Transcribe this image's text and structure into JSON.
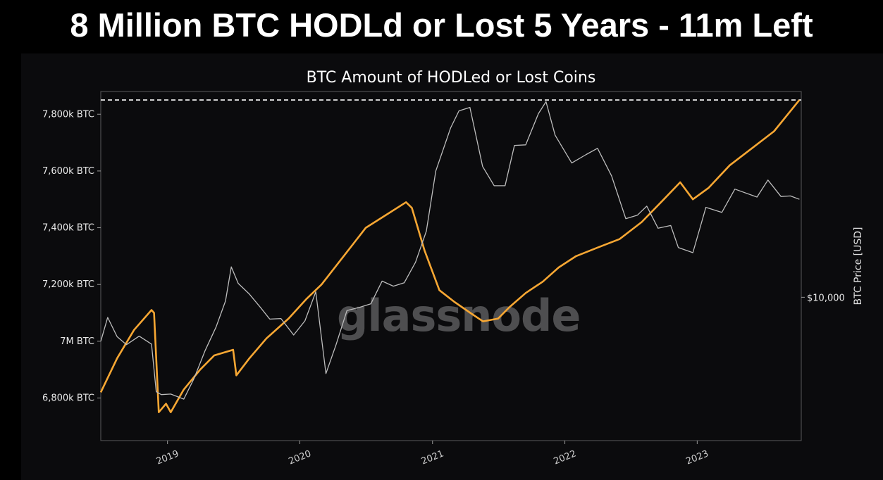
{
  "headline": "8 Million BTC HODLd or Lost 5 Years - 11m Left",
  "watermark": "glassnode",
  "colors": {
    "background": "#0b0b0d",
    "hodl_line": "#f7a733",
    "price_line": "#bdbdbd",
    "reference_line": "#ffffff"
  },
  "chart_data": {
    "type": "line",
    "title": "BTC Amount of HODLed or Lost Coins",
    "ylabel_right": "BTC Price [USD]",
    "ylim": [
      6650,
      7880
    ],
    "y_ticks": [
      {
        "value": 6800,
        "label": "6,800k BTC"
      },
      {
        "value": 7000,
        "label": "7M BTC"
      },
      {
        "value": 7200,
        "label": "7,200k BTC"
      },
      {
        "value": 7400,
        "label": "7,400k BTC"
      },
      {
        "value": 7600,
        "label": "7,600k BTC"
      },
      {
        "value": 7800,
        "label": "7,800k BTC"
      }
    ],
    "right_ticks": [
      {
        "value": "$10,000",
        "position_k": 7155
      }
    ],
    "xlim": [
      "2018-07-01",
      "2023-10-15"
    ],
    "x_ticks": [
      "2019",
      "2020",
      "2021",
      "2022",
      "2023"
    ],
    "reference_line": {
      "style": "dashed",
      "value_k": 7850
    },
    "series": [
      {
        "role": "hodl",
        "points": [
          [
            "2018-07-01",
            6820
          ],
          [
            "2018-08-15",
            6940
          ],
          [
            "2018-10-01",
            7040
          ],
          [
            "2018-11-18",
            7110
          ],
          [
            "2018-11-25",
            7100
          ],
          [
            "2018-12-08",
            6750
          ],
          [
            "2018-12-28",
            6780
          ],
          [
            "2019-01-10",
            6750
          ],
          [
            "2019-02-15",
            6830
          ],
          [
            "2019-04-01",
            6900
          ],
          [
            "2019-05-10",
            6950
          ],
          [
            "2019-07-01",
            6970
          ],
          [
            "2019-07-10",
            6880
          ],
          [
            "2019-08-15",
            6940
          ],
          [
            "2019-10-01",
            7010
          ],
          [
            "2019-12-01",
            7080
          ],
          [
            "2020-01-20",
            7150
          ],
          [
            "2020-03-01",
            7200
          ],
          [
            "2020-05-01",
            7300
          ],
          [
            "2020-07-01",
            7400
          ],
          [
            "2020-09-01",
            7450
          ],
          [
            "2020-10-20",
            7490
          ],
          [
            "2020-11-05",
            7470
          ],
          [
            "2020-12-10",
            7320
          ],
          [
            "2021-01-20",
            7180
          ],
          [
            "2021-03-01",
            7140
          ],
          [
            "2021-04-15",
            7100
          ],
          [
            "2021-05-20",
            7070
          ],
          [
            "2021-07-01",
            7080
          ],
          [
            "2021-08-01",
            7120
          ],
          [
            "2021-09-15",
            7170
          ],
          [
            "2021-11-01",
            7210
          ],
          [
            "2021-12-15",
            7260
          ],
          [
            "2022-02-01",
            7300
          ],
          [
            "2022-04-01",
            7330
          ],
          [
            "2022-06-01",
            7360
          ],
          [
            "2022-08-01",
            7420
          ],
          [
            "2022-10-01",
            7500
          ],
          [
            "2022-11-15",
            7560
          ],
          [
            "2022-12-20",
            7500
          ],
          [
            "2023-02-01",
            7540
          ],
          [
            "2023-04-01",
            7620
          ],
          [
            "2023-06-01",
            7680
          ],
          [
            "2023-08-01",
            7740
          ],
          [
            "2023-10-10",
            7850
          ]
        ]
      },
      {
        "role": "price",
        "points": [
          [
            "2018-07-01",
            7000
          ],
          [
            "2018-07-20",
            7080
          ],
          [
            "2018-08-15",
            7020
          ],
          [
            "2018-09-10",
            7000
          ],
          [
            "2018-10-15",
            7010
          ],
          [
            "2018-11-18",
            6990
          ],
          [
            "2018-12-01",
            6830
          ],
          [
            "2018-12-15",
            6800
          ],
          [
            "2019-01-10",
            6810
          ],
          [
            "2019-02-15",
            6800
          ],
          [
            "2019-03-15",
            6880
          ],
          [
            "2019-04-15",
            6960
          ],
          [
            "2019-05-15",
            7050
          ],
          [
            "2019-06-10",
            7150
          ],
          [
            "2019-06-26",
            7250
          ],
          [
            "2019-07-15",
            7200
          ],
          [
            "2019-08-15",
            7170
          ],
          [
            "2019-09-15",
            7130
          ],
          [
            "2019-10-10",
            7070
          ],
          [
            "2019-11-10",
            7080
          ],
          [
            "2019-12-15",
            7030
          ],
          [
            "2020-01-15",
            7060
          ],
          [
            "2020-02-14",
            7170
          ],
          [
            "2020-03-13",
            6890
          ],
          [
            "2020-04-10",
            7000
          ],
          [
            "2020-05-10",
            7100
          ],
          [
            "2020-06-15",
            7120
          ],
          [
            "2020-07-15",
            7140
          ],
          [
            "2020-08-15",
            7200
          ],
          [
            "2020-09-15",
            7190
          ],
          [
            "2020-10-15",
            7210
          ],
          [
            "2020-11-15",
            7290
          ],
          [
            "2020-12-15",
            7380
          ],
          [
            "2021-01-10",
            7600
          ],
          [
            "2021-02-20",
            7760
          ],
          [
            "2021-03-15",
            7800
          ],
          [
            "2021-04-14",
            7820
          ],
          [
            "2021-05-19",
            7620
          ],
          [
            "2021-06-20",
            7560
          ],
          [
            "2021-07-20",
            7540
          ],
          [
            "2021-08-15",
            7690
          ],
          [
            "2021-09-15",
            7700
          ],
          [
            "2021-10-20",
            7790
          ],
          [
            "2021-11-10",
            7840
          ],
          [
            "2021-12-05",
            7730
          ],
          [
            "2022-01-20",
            7640
          ],
          [
            "2022-03-01",
            7650
          ],
          [
            "2022-04-01",
            7680
          ],
          [
            "2022-05-10",
            7590
          ],
          [
            "2022-06-18",
            7420
          ],
          [
            "2022-07-20",
            7440
          ],
          [
            "2022-08-15",
            7480
          ],
          [
            "2022-09-15",
            7410
          ],
          [
            "2022-10-20",
            7400
          ],
          [
            "2022-11-10",
            7330
          ],
          [
            "2022-12-20",
            7320
          ],
          [
            "2023-01-25",
            7460
          ],
          [
            "2023-03-10",
            7450
          ],
          [
            "2023-04-15",
            7540
          ],
          [
            "2023-06-15",
            7520
          ],
          [
            "2023-07-15",
            7560
          ],
          [
            "2023-08-20",
            7510
          ],
          [
            "2023-09-15",
            7520
          ],
          [
            "2023-10-10",
            7500
          ]
        ]
      }
    ]
  }
}
